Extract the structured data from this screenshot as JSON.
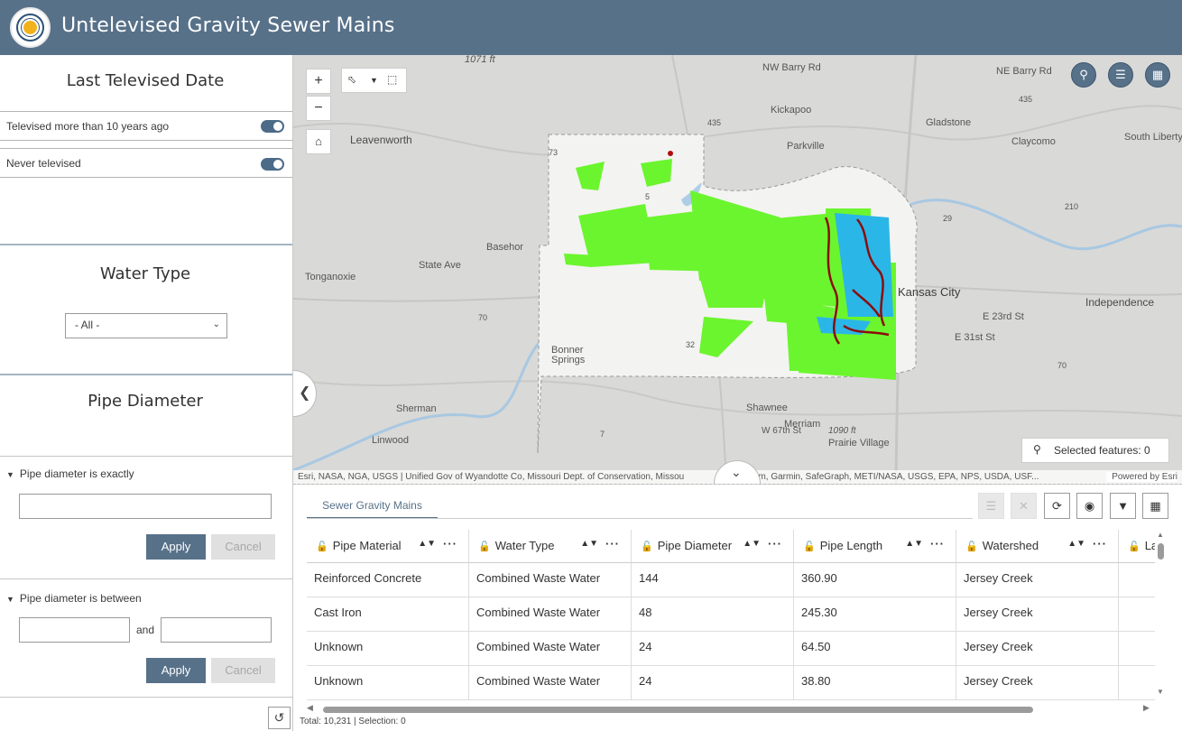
{
  "header": {
    "title": "Untelevised Gravity Sewer Mains"
  },
  "sidebar": {
    "last_televised": {
      "title": "Last Televised Date",
      "items": [
        {
          "label": "Televised more than 10 years ago",
          "on": true
        },
        {
          "label": "Never televised",
          "on": true
        }
      ]
    },
    "water_type": {
      "title": "Water Type",
      "selected": "- All -"
    },
    "pipe_diameter": {
      "title": "Pipe Diameter",
      "exact": {
        "label": "Pipe diameter is exactly",
        "value": "",
        "apply": "Apply",
        "cancel": "Cancel"
      },
      "between": {
        "label": "Pipe diameter is between",
        "and": "and",
        "min": "",
        "max": "",
        "apply": "Apply",
        "cancel": "Cancel"
      }
    }
  },
  "map": {
    "selected_features": "Selected features: 0",
    "attribution": "Esri, NASA, NGA, USGS | Unified Gov of Wyandotte Co, Missouri Dept. of Conservation, Missou",
    "attribution_tail": "TomTom, Garmin, SafeGraph, METI/NASA, USGS, EPA, NPS, USDA, USF...",
    "powered_by": "Powered by Esri",
    "labels": {
      "leavenworth": "Leavenworth",
      "nw_barry": "NW Barry Rd",
      "ne_barry": "NE Barry Rd",
      "kickapoo": "Kickapoo",
      "gladstone": "Gladstone",
      "parkville": "Parkville",
      "claycomo": "Claycomo",
      "south_liberty": "South Liberty",
      "basehor": "Basehor",
      "state_ave": "State Ave",
      "tonganoxie": "Tonganoxie",
      "kansas_city": "Kansas City",
      "independence": "Independence",
      "e23rd": "E 23rd St",
      "e31st": "E 31st St",
      "bonner": "Bonner",
      "springs": "Springs",
      "sherman": "Sherman",
      "shawnee": "Shawnee",
      "merriam": "Merriam",
      "prairie_village": "Prairie Village",
      "linwood": "Linwood",
      "w67th": "W 67th St",
      "ft1071": "1071 ft",
      "ft1090": "1090 ft",
      "route_73": "73",
      "route_5": "5",
      "route_435a": "435",
      "route_435b": "435",
      "route_29": "29",
      "route_210": "210",
      "route_70a": "70",
      "route_70b": "70",
      "route_32": "32",
      "route_7": "7"
    },
    "colors": {
      "water": "#aecde6",
      "county": "#f3f3f1",
      "never": "#6bf52e",
      "over10": "#2bb6e8",
      "highlight": "#8b0d0d"
    }
  },
  "table": {
    "tab_label": "Sewer Gravity Mains",
    "columns": [
      "Pipe Material",
      "Water Type",
      "Pipe Diameter",
      "Pipe Length",
      "Watershed",
      "La"
    ],
    "rows": [
      [
        "Reinforced Concrete",
        "Combined Waste Water",
        "144",
        "360.90",
        "Jersey Creek",
        ""
      ],
      [
        "Cast Iron",
        "Combined Waste Water",
        "48",
        "245.30",
        "Jersey Creek",
        ""
      ],
      [
        "Unknown",
        "Combined Waste Water",
        "24",
        "64.50",
        "Jersey Creek",
        ""
      ],
      [
        "Unknown",
        "Combined Waste Water",
        "24",
        "38.80",
        "Jersey Creek",
        ""
      ]
    ],
    "status": "Total: 10,231 | Selection: 0"
  }
}
